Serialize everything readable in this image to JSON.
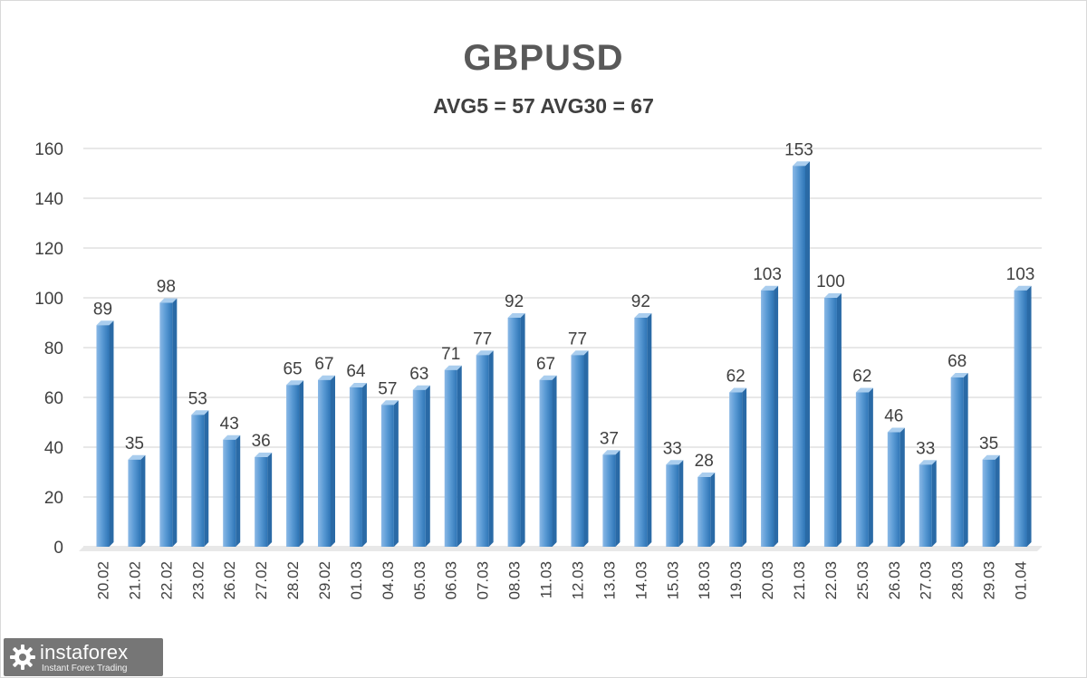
{
  "chart_data": {
    "type": "bar",
    "title": "GBPUSD",
    "subtitle": "AVG5 = 57 AVG30 = 67",
    "categories": [
      "20.02",
      "21.02",
      "22.02",
      "23.02",
      "26.02",
      "27.02",
      "28.02",
      "29.02",
      "01.03",
      "04.03",
      "05.03",
      "06.03",
      "07.03",
      "08.03",
      "11.03",
      "12.03",
      "13.03",
      "14.03",
      "15.03",
      "18.03",
      "19.03",
      "20.03",
      "21.03",
      "22.03",
      "25.03",
      "26.03",
      "27.03",
      "28.03",
      "29.03",
      "01.04"
    ],
    "values": [
      89,
      35,
      98,
      53,
      43,
      36,
      65,
      67,
      64,
      57,
      63,
      71,
      77,
      92,
      67,
      77,
      37,
      92,
      33,
      28,
      62,
      103,
      153,
      100,
      62,
      46,
      33,
      68,
      35,
      103
    ],
    "yticks": [
      0,
      20,
      40,
      60,
      80,
      100,
      120,
      140,
      160
    ],
    "ylim": [
      0,
      160
    ],
    "grid": true,
    "legend": "none",
    "bar_color": "#5b9bd5",
    "bar_color_dark": "#2e75b6"
  },
  "watermark": {
    "name": "instaforex",
    "tagline": "Instant Forex Trading"
  }
}
